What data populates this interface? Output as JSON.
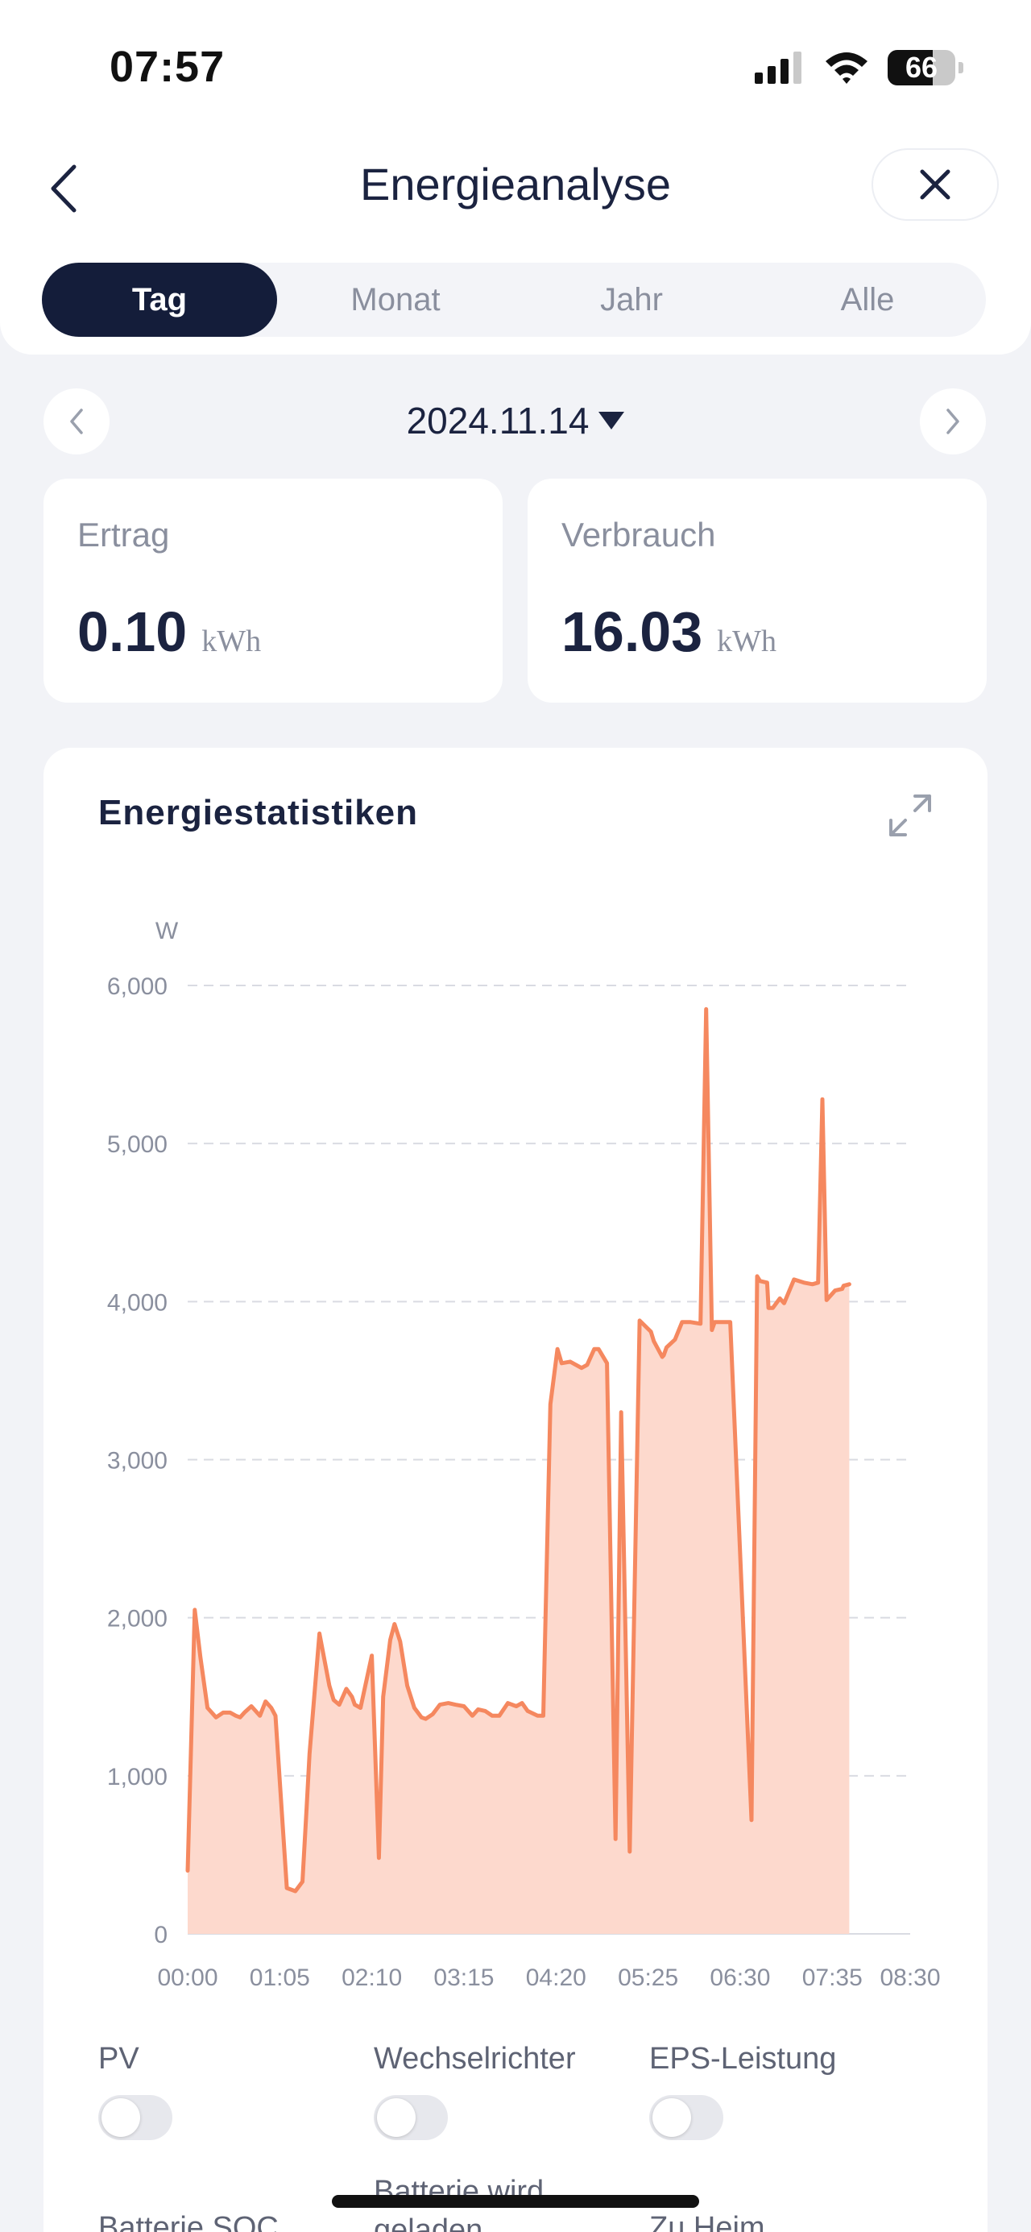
{
  "status_bar": {
    "time": "07:57",
    "battery": "66"
  },
  "header": {
    "title": "Energieanalyse"
  },
  "tabs": [
    {
      "label": "Tag",
      "active": true
    },
    {
      "label": "Monat",
      "active": false
    },
    {
      "label": "Jahr",
      "active": false
    },
    {
      "label": "Alle",
      "active": false
    }
  ],
  "date": {
    "value": "2024.11.14"
  },
  "summary": {
    "yield": {
      "label": "Ertrag",
      "value": "0.10",
      "unit": "kWh"
    },
    "consumption": {
      "label": "Verbrauch",
      "value": "16.03",
      "unit": "kWh"
    }
  },
  "chart_section": {
    "title": "Energiestatistiken"
  },
  "chart_data": {
    "type": "area",
    "ylabel": "W",
    "ylim": [
      0,
      6000
    ],
    "y_ticks": [
      "0",
      "1,000",
      "2,000",
      "3,000",
      "4,000",
      "5,000",
      "6,000"
    ],
    "y_tick_values": [
      0,
      1000,
      2000,
      3000,
      4000,
      5000,
      6000
    ],
    "x_ticks": [
      "00:00",
      "01:05",
      "02:10",
      "03:15",
      "04:20",
      "05:25",
      "06:30",
      "07:35",
      "08:30"
    ],
    "x_tick_minutes": [
      0,
      65,
      130,
      195,
      260,
      325,
      390,
      455,
      510
    ],
    "xlim_minutes": [
      0,
      510
    ],
    "grid": true,
    "series": [
      {
        "color": "#f5885f",
        "fill": "#fdd9cd",
        "x_minutes": [
          0,
          5,
          9,
          14,
          20,
          25,
          30,
          34,
          37,
          40,
          45,
          51,
          55,
          59,
          62,
          70,
          76,
          81,
          84,
          86,
          93,
          100,
          103,
          107,
          112,
          116,
          118,
          122,
          130,
          135,
          138,
          143,
          146,
          150,
          155,
          160,
          165,
          168,
          173,
          178,
          184,
          189,
          195,
          201,
          205,
          210,
          215,
          220,
          226,
          232,
          236,
          240,
          247,
          251,
          256,
          261,
          264,
          270,
          278,
          282,
          287,
          290,
          296,
          302,
          306,
          312,
          319,
          327,
          329,
          335,
          336,
          338,
          344,
          349,
          355,
          362,
          366,
          370,
          372,
          383,
          398,
          402,
          404,
          409,
          410,
          413,
          418,
          421,
          428,
          435,
          441,
          445,
          448,
          451,
          457,
          462,
          463,
          467
        ],
        "y": [
          400,
          2050,
          1750,
          1430,
          1370,
          1400,
          1400,
          1380,
          1370,
          1400,
          1440,
          1380,
          1470,
          1430,
          1380,
          290,
          270,
          330,
          800,
          1140,
          1900,
          1570,
          1480,
          1450,
          1550,
          1500,
          1450,
          1430,
          1760,
          480,
          1500,
          1860,
          1960,
          1850,
          1570,
          1430,
          1370,
          1360,
          1390,
          1450,
          1460,
          1450,
          1440,
          1380,
          1420,
          1410,
          1380,
          1380,
          1460,
          1440,
          1460,
          1410,
          1380,
          1380,
          3350,
          3700,
          3610,
          3620,
          3580,
          3600,
          3700,
          3700,
          3610,
          600,
          3300,
          520,
          3880,
          3810,
          3750,
          3650,
          3660,
          3710,
          3760,
          3870,
          3870,
          3860,
          5850,
          3820,
          3870,
          3870,
          720,
          4160,
          4130,
          4120,
          3960,
          3960,
          4020,
          3990,
          4140,
          4120,
          4110,
          4120,
          5280,
          4010,
          4070,
          4080,
          4100,
          4110
        ]
      }
    ]
  },
  "toggles": [
    {
      "label": "PV"
    },
    {
      "label": "Wechselrichter"
    },
    {
      "label": "EPS-Leistung"
    },
    {
      "label": "Batterie SOC"
    },
    {
      "label": "Batterie wird geladen"
    },
    {
      "label": "Zu Heim"
    }
  ],
  "colors": {
    "primary": "#141d3a",
    "accent": "#f5885f",
    "area_fill": "#fdd9cd",
    "background": "#f2f3f7"
  },
  "icons": {
    "back": "chevron-left-icon",
    "close": "close-icon",
    "expand": "expand-icon",
    "prev": "chevron-left-icon",
    "next": "chevron-right-icon",
    "dropdown": "triangle-down-icon"
  }
}
